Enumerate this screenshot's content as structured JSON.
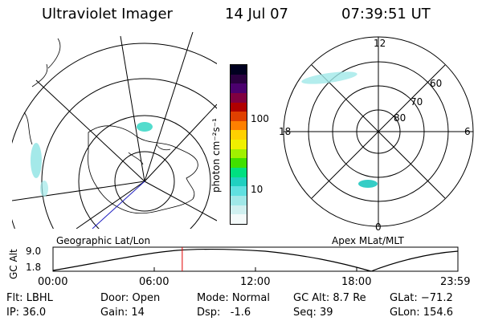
{
  "header": {
    "instrument": "Ultraviolet Imager",
    "date": "14 Jul 07",
    "time": "07:39:51 UT"
  },
  "colorbar": {
    "unit_label": "photon cm⁻²s⁻¹",
    "ticks": [
      "100",
      "10"
    ],
    "colors": [
      "#000020",
      "#2a0040",
      "#4b006e",
      "#800040",
      "#b00000",
      "#e04000",
      "#ff8000",
      "#ffd000",
      "#f0f000",
      "#a0f000",
      "#40e000",
      "#00e080",
      "#20d0c0",
      "#60e0e0",
      "#a0e8e8",
      "#d0f0f0",
      "#f4fafa"
    ]
  },
  "left_map": {
    "label": "Geographic Lat/Lon"
  },
  "right_map": {
    "label": "Apex MLat/MLT",
    "mlt_labels": [
      "12",
      "18",
      "6",
      "0"
    ],
    "mlat_labels": [
      "60",
      "70",
      "80"
    ]
  },
  "altitude_plot": {
    "ylabel": "GC Alt",
    "yticks": [
      "9.0",
      "1.8"
    ],
    "xticks": [
      "00:00",
      "06:00",
      "12:00",
      "18:00",
      "23:59"
    ],
    "current_time_marker_hour": 7.66
  },
  "status": {
    "filter": "Flt: LBHL",
    "ip": "IP: 36.0",
    "door": "Door: Open",
    "gain": "Gain: 14",
    "mode": "Mode: Normal",
    "dsp": "Dsp:   -1.6",
    "gc_alt": "GC Alt: 8.7 Re",
    "seq": "Seq: 39",
    "glat": "GLat: −71.2",
    "glon": "GLon: 154.6"
  }
}
